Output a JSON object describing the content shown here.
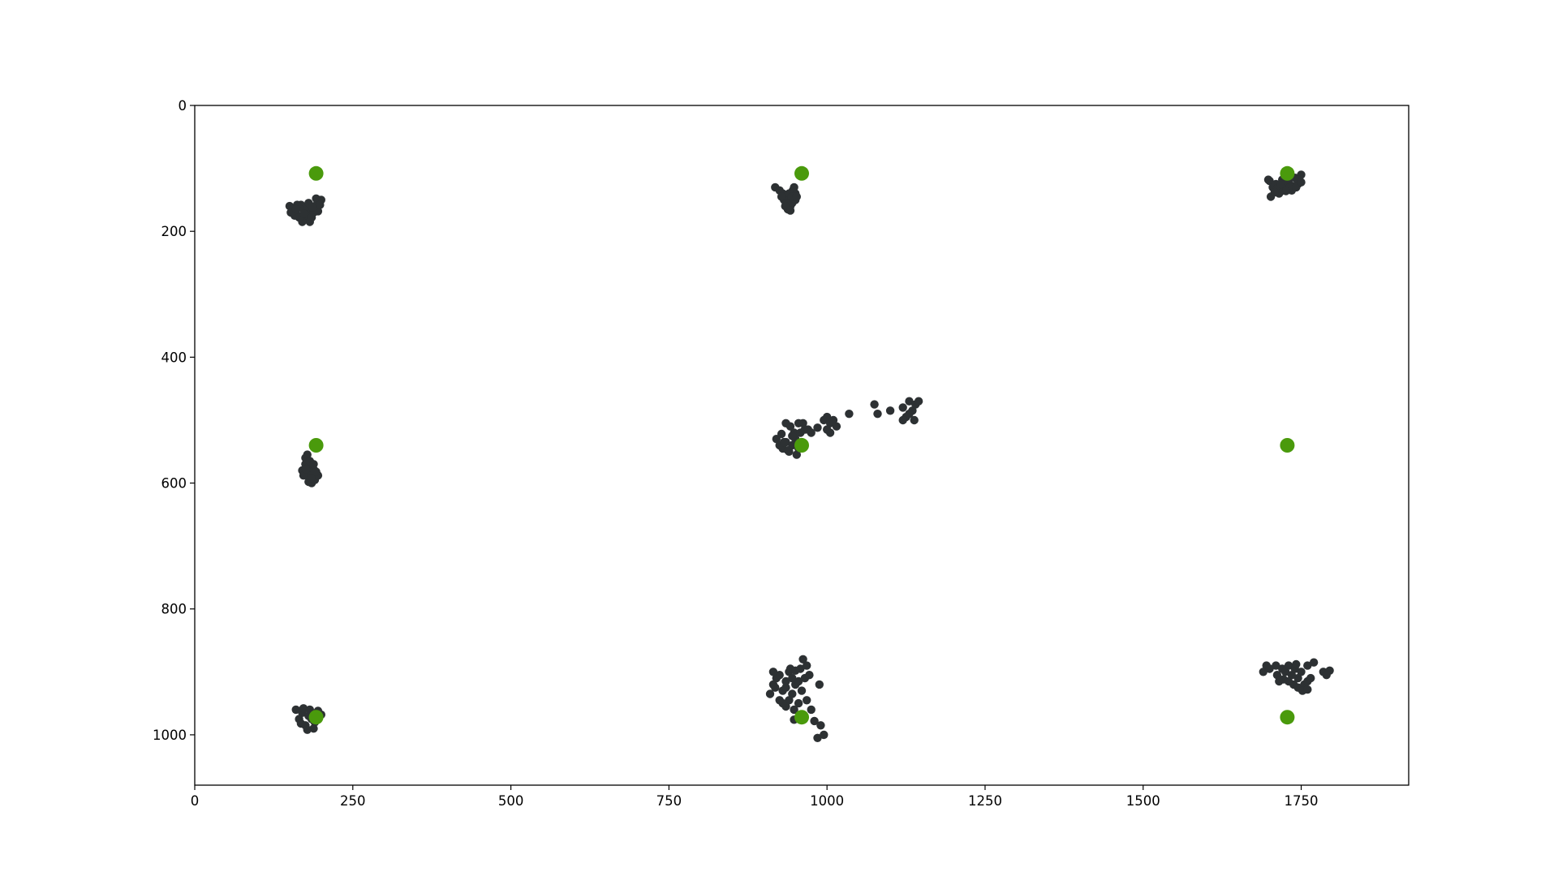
{
  "colors": {
    "gaze_points": "#2d3133",
    "targets": "#4a9a0c",
    "axes": "#000000",
    "background": "#ffffff"
  },
  "chart_data": {
    "type": "scatter",
    "title": "",
    "xlabel": "",
    "ylabel": "",
    "xlim": [
      0,
      1920
    ],
    "ylim": [
      1080,
      0
    ],
    "y_axis_inverted": true,
    "grid": false,
    "legend": "none",
    "x_ticks": [
      0,
      250,
      500,
      750,
      1000,
      1250,
      1500,
      1750
    ],
    "y_ticks": [
      0,
      200,
      400,
      600,
      800,
      1000
    ],
    "x_tick_labels": [
      "0",
      "250",
      "500",
      "750",
      "1000",
      "1250",
      "1500",
      "1750"
    ],
    "y_tick_labels": [
      "0",
      "200",
      "400",
      "600",
      "800",
      "1000"
    ],
    "series": [
      {
        "marker": "large-dot",
        "color": "#4a9a0c",
        "points": [
          [
            192,
            108
          ],
          [
            960,
            108
          ],
          [
            1728,
            108
          ],
          [
            192,
            540
          ],
          [
            960,
            540
          ],
          [
            1728,
            540
          ],
          [
            192,
            972
          ],
          [
            960,
            972
          ],
          [
            1728,
            972
          ]
        ]
      },
      {
        "marker": "small-dot",
        "color": "#2d3133",
        "points": [
          [
            150,
            160
          ],
          [
            155,
            165
          ],
          [
            160,
            170
          ],
          [
            165,
            162
          ],
          [
            170,
            175
          ],
          [
            175,
            168
          ],
          [
            180,
            172
          ],
          [
            185,
            165
          ],
          [
            190,
            160
          ],
          [
            195,
            155
          ],
          [
            200,
            150
          ],
          [
            175,
            180
          ],
          [
            168,
            158
          ],
          [
            182,
            185
          ],
          [
            158,
            175
          ],
          [
            188,
            170
          ],
          [
            195,
            168
          ],
          [
            172,
            165
          ],
          [
            162,
            158
          ],
          [
            178,
            160
          ],
          [
            192,
            148
          ],
          [
            185,
            178
          ],
          [
            170,
            185
          ],
          [
            152,
            170
          ],
          [
            165,
            178
          ],
          [
            198,
            158
          ],
          [
            180,
            155
          ],
          [
            160,
            165
          ],
          [
            173,
            172
          ],
          [
            186,
            162
          ],
          [
            918,
            130
          ],
          [
            925,
            135
          ],
          [
            930,
            140
          ],
          [
            935,
            145
          ],
          [
            940,
            150
          ],
          [
            945,
            155
          ],
          [
            950,
            150
          ],
          [
            942,
            160
          ],
          [
            938,
            165
          ],
          [
            946,
            135
          ],
          [
            932,
            150
          ],
          [
            950,
            140
          ],
          [
            928,
            145
          ],
          [
            940,
            140
          ],
          [
            936,
            155
          ],
          [
            944,
            145
          ],
          [
            948,
            130
          ],
          [
            934,
            160
          ],
          [
            942,
            167
          ],
          [
            952,
            145
          ],
          [
            1700,
            120
          ],
          [
            1705,
            130
          ],
          [
            1710,
            125
          ],
          [
            1715,
            140
          ],
          [
            1720,
            118
          ],
          [
            1725,
            128
          ],
          [
            1730,
            122
          ],
          [
            1735,
            135
          ],
          [
            1740,
            115
          ],
          [
            1745,
            125
          ],
          [
            1750,
            110
          ],
          [
            1712,
            132
          ],
          [
            1722,
            135
          ],
          [
            1738,
            128
          ],
          [
            1702,
            145
          ],
          [
            1708,
            138
          ],
          [
            1728,
            112
          ],
          [
            1745,
            118
          ],
          [
            1732,
            130
          ],
          [
            1718,
            125
          ],
          [
            1742,
            130
          ],
          [
            1750,
            122
          ],
          [
            1698,
            118
          ],
          [
            1726,
            136
          ],
          [
            170,
            580
          ],
          [
            175,
            570
          ],
          [
            180,
            590
          ],
          [
            185,
            585
          ],
          [
            190,
            595
          ],
          [
            180,
            575
          ],
          [
            175,
            560
          ],
          [
            185,
            600
          ],
          [
            195,
            588
          ],
          [
            178,
            555
          ],
          [
            182,
            565
          ],
          [
            188,
            578
          ],
          [
            172,
            588
          ],
          [
            192,
            582
          ],
          [
            180,
            598
          ],
          [
            176,
            578
          ],
          [
            184,
            592
          ],
          [
            188,
            570
          ],
          [
            920,
            530
          ],
          [
            925,
            540
          ],
          [
            930,
            545
          ],
          [
            935,
            535
          ],
          [
            940,
            550
          ],
          [
            945,
            540
          ],
          [
            950,
            530
          ],
          [
            955,
            545
          ],
          [
            948,
            520
          ],
          [
            942,
            510
          ],
          [
            935,
            505
          ],
          [
            958,
            520
          ],
          [
            965,
            515
          ],
          [
            960,
            535
          ],
          [
            952,
            555
          ],
          [
            938,
            548
          ],
          [
            928,
            522
          ],
          [
            945,
            525
          ],
          [
            932,
            535
          ],
          [
            970,
            515
          ],
          [
            975,
            520
          ],
          [
            985,
            512
          ],
          [
            995,
            500
          ],
          [
            1000,
            495
          ],
          [
            1005,
            505
          ],
          [
            1010,
            500
          ],
          [
            1015,
            510
          ],
          [
            1005,
            520
          ],
          [
            1000,
            515
          ],
          [
            1035,
            490
          ],
          [
            1075,
            475
          ],
          [
            1080,
            490
          ],
          [
            1100,
            485
          ],
          [
            1120,
            480
          ],
          [
            1125,
            495
          ],
          [
            1130,
            470
          ],
          [
            1135,
            485
          ],
          [
            1140,
            475
          ],
          [
            1138,
            500
          ],
          [
            1120,
            500
          ],
          [
            1130,
            490
          ],
          [
            1145,
            470
          ],
          [
            962,
            505
          ],
          [
            955,
            505
          ],
          [
            160,
            960
          ],
          [
            170,
            965
          ],
          [
            180,
            970
          ],
          [
            185,
            975
          ],
          [
            190,
            980
          ],
          [
            175,
            985
          ],
          [
            165,
            975
          ],
          [
            172,
            958
          ],
          [
            195,
            962
          ],
          [
            200,
            968
          ],
          [
            188,
            990
          ],
          [
            178,
            992
          ],
          [
            168,
            982
          ],
          [
            182,
            960
          ],
          [
            192,
            972
          ],
          [
            910,
            935
          ],
          [
            915,
            920
          ],
          [
            920,
            910
          ],
          [
            925,
            905
          ],
          [
            930,
            930
          ],
          [
            935,
            925
          ],
          [
            940,
            945
          ],
          [
            945,
            935
          ],
          [
            950,
            920
          ],
          [
            955,
            915
          ],
          [
            960,
            930
          ],
          [
            965,
            910
          ],
          [
            958,
            895
          ],
          [
            962,
            880
          ],
          [
            968,
            890
          ],
          [
            972,
            905
          ],
          [
            940,
            900
          ],
          [
            945,
            910
          ],
          [
            935,
            955
          ],
          [
            930,
            950
          ],
          [
            948,
            960
          ],
          [
            955,
            950
          ],
          [
            925,
            945
          ],
          [
            918,
            925
          ],
          [
            915,
            900
          ],
          [
            942,
            895
          ],
          [
            950,
            898
          ],
          [
            975,
            960
          ],
          [
            980,
            978
          ],
          [
            990,
            985
          ],
          [
            985,
            1005
          ],
          [
            995,
            1000
          ],
          [
            948,
            976
          ],
          [
            988,
            920
          ],
          [
            968,
            945
          ],
          [
            935,
            915
          ],
          [
            1690,
            900
          ],
          [
            1695,
            890
          ],
          [
            1710,
            890
          ],
          [
            1720,
            895
          ],
          [
            1725,
            900
          ],
          [
            1730,
            890
          ],
          [
            1735,
            905
          ],
          [
            1740,
            895
          ],
          [
            1745,
            910
          ],
          [
            1750,
            900
          ],
          [
            1755,
            920
          ],
          [
            1760,
            915
          ],
          [
            1765,
            910
          ],
          [
            1770,
            885
          ],
          [
            1760,
            890
          ],
          [
            1712,
            905
          ],
          [
            1722,
            912
          ],
          [
            1738,
            920
          ],
          [
            1745,
            925
          ],
          [
            1752,
            930
          ],
          [
            1760,
            928
          ],
          [
            1730,
            915
          ],
          [
            1785,
            900
          ],
          [
            1795,
            898
          ],
          [
            1790,
            905
          ],
          [
            1715,
            915
          ],
          [
            1700,
            895
          ],
          [
            1742,
            888
          ]
        ]
      }
    ]
  }
}
